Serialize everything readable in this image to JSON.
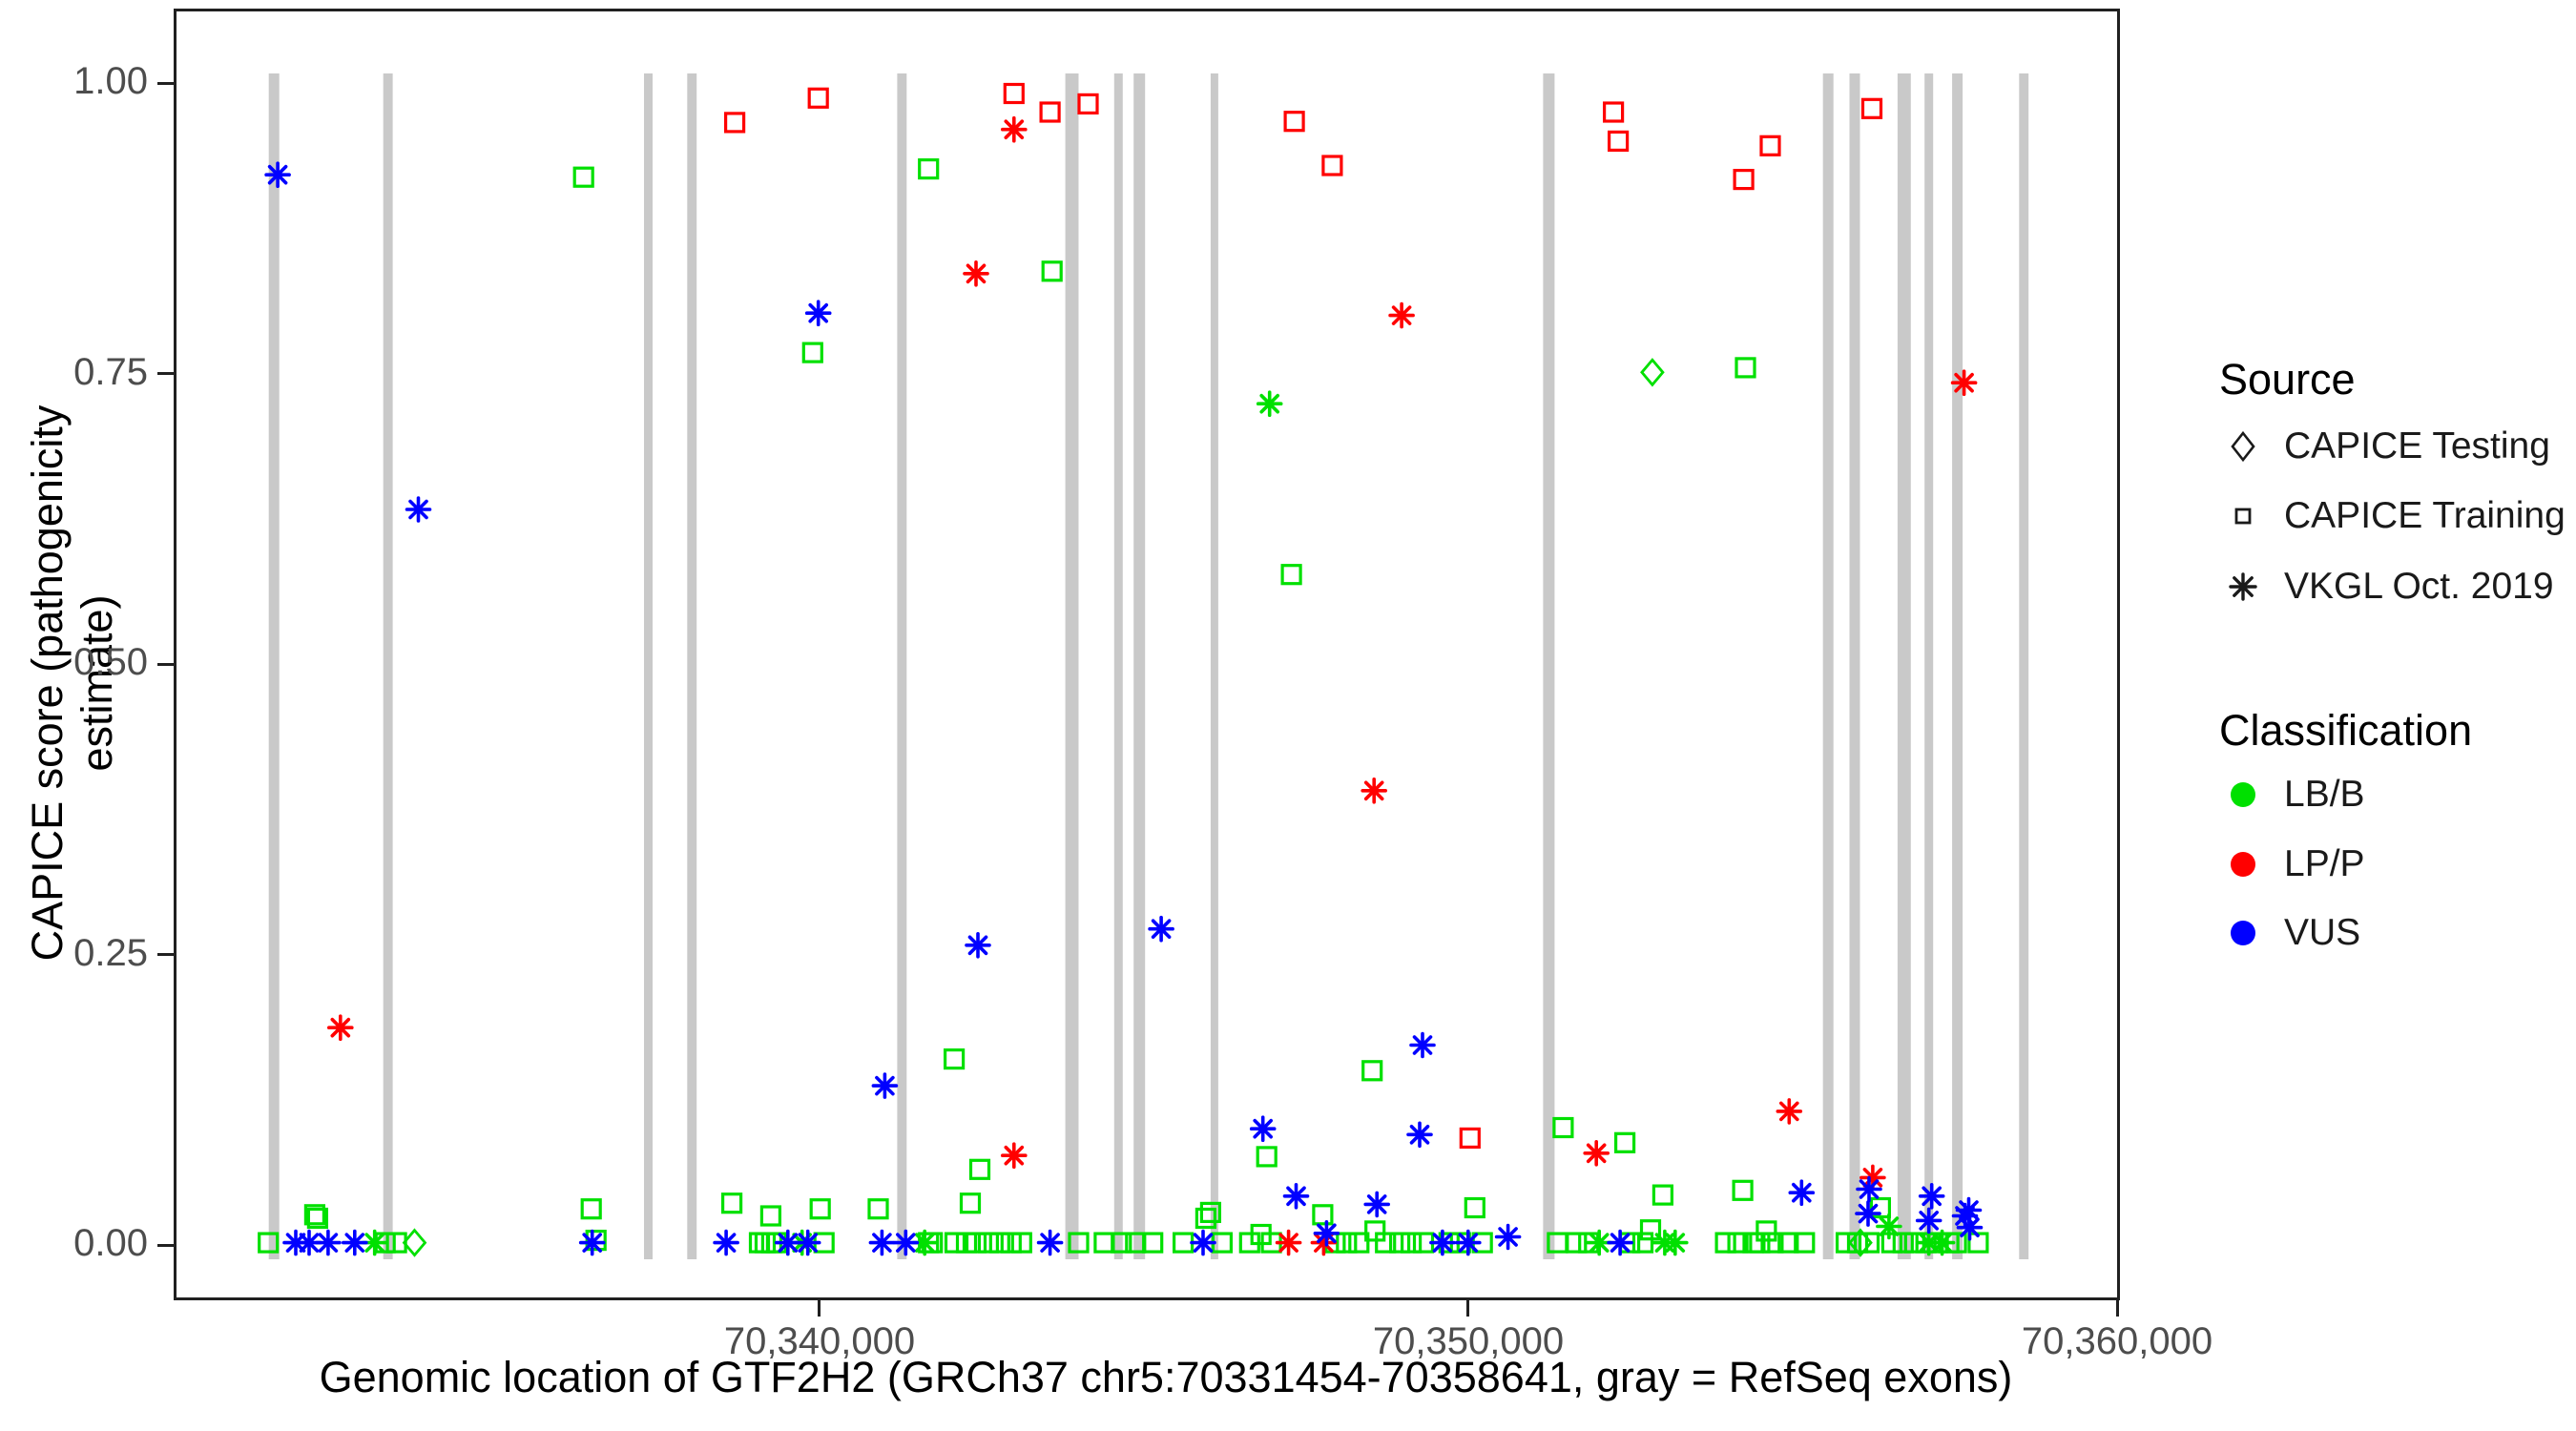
{
  "axis": {
    "x_title": "Genomic location of GTF2H2 (GRCh37 chr5:70331454-70358641, gray = RefSeq exons)",
    "y_title": "CAPICE score (pathogenicity estimate)"
  },
  "legend": {
    "source": {
      "title": "Source",
      "items": [
        {
          "label": "CAPICE Testing",
          "shape": "diamond"
        },
        {
          "label": "CAPICE Training",
          "shape": "square"
        },
        {
          "label": "VKGL Oct. 2019",
          "shape": "asterisk"
        }
      ]
    },
    "classification": {
      "title": "Classification",
      "items": [
        {
          "label": "LB/B",
          "color": "#00E000"
        },
        {
          "label": "LP/P",
          "color": "#FF0000"
        },
        {
          "label": "VUS",
          "color": "#0000FF"
        }
      ]
    }
  },
  "chart_data": {
    "type": "scatter",
    "title": "",
    "xlabel": "Genomic location of GTF2H2 (GRCh37 chr5:70331454-70358641, gray = RefSeq exons)",
    "ylabel": "CAPICE score (pathogenicity estimate)",
    "x_range": [
      70330095,
      70360000
    ],
    "y_range": [
      0,
      1
    ],
    "grid": false,
    "legend_position": "right",
    "x_ticks": [
      {
        "value": 70340000,
        "label": "70,340,000"
      },
      {
        "value": 70350000,
        "label": "70,350,000"
      },
      {
        "value": 70360000,
        "label": "70,360,000"
      }
    ],
    "y_ticks": [
      {
        "value": 0.0,
        "label": "0.00"
      },
      {
        "value": 0.25,
        "label": "0.25"
      },
      {
        "value": 0.5,
        "label": "0.50"
      },
      {
        "value": 0.75,
        "label": "0.75"
      },
      {
        "value": 1.0,
        "label": "1.00"
      }
    ],
    "exon_color": "#C9C9C9",
    "exons_center_width_bp": [
      [
        70331597,
        161
      ],
      [
        70333354,
        146
      ],
      [
        70337365,
        132
      ],
      [
        70338039,
        146
      ],
      [
        70341274,
        146
      ],
      [
        70343894,
        205
      ],
      [
        70344611,
        132
      ],
      [
        70344933,
        176
      ],
      [
        70346090,
        117
      ],
      [
        70351243,
        176
      ],
      [
        70355548,
        161
      ],
      [
        70355957,
        161
      ],
      [
        70356719,
        205
      ],
      [
        70357099,
        132
      ],
      [
        70357538,
        161
      ],
      [
        70358563,
        146
      ]
    ],
    "shape_codes": {
      "q": "CAPICE Training (square)",
      "a": "VKGL Oct. 2019 (asterisk)",
      "d": "CAPICE Testing (diamond)"
    },
    "class_codes": {
      "G": "LB/B",
      "R": "LP/P",
      "B": "VUS"
    },
    "class_colors": {
      "G": "#00E000",
      "R": "#FF0000",
      "B": "#0000FF"
    },
    "points": [
      [
        70331655,
        0.921,
        "a",
        "B"
      ],
      [
        70336369,
        0.919,
        "q",
        "G"
      ],
      [
        70338697,
        0.966,
        "q",
        "R"
      ],
      [
        70339985,
        0.987,
        "q",
        "R"
      ],
      [
        70341683,
        0.926,
        "q",
        "G"
      ],
      [
        70343001,
        0.991,
        "q",
        "R"
      ],
      [
        70343001,
        0.96,
        "a",
        "R"
      ],
      [
        70343557,
        0.975,
        "q",
        "R"
      ],
      [
        70344143,
        0.982,
        "q",
        "R"
      ],
      [
        70347320,
        0.967,
        "q",
        "R"
      ],
      [
        70347906,
        0.929,
        "q",
        "R"
      ],
      [
        70352239,
        0.975,
        "q",
        "R"
      ],
      [
        70352312,
        0.95,
        "q",
        "R"
      ],
      [
        70354245,
        0.917,
        "q",
        "R"
      ],
      [
        70354655,
        0.946,
        "q",
        "R"
      ],
      [
        70356221,
        0.978,
        "q",
        "R"
      ],
      [
        70342416,
        0.836,
        "a",
        "R"
      ],
      [
        70343587,
        0.838,
        "q",
        "G"
      ],
      [
        70339985,
        0.802,
        "a",
        "B"
      ],
      [
        70339898,
        0.768,
        "q",
        "G"
      ],
      [
        70348975,
        0.8,
        "a",
        "R"
      ],
      [
        70346940,
        0.724,
        "a",
        "G"
      ],
      [
        70352839,
        0.751,
        "d",
        "G"
      ],
      [
        70354274,
        0.755,
        "q",
        "G"
      ],
      [
        70357641,
        0.742,
        "a",
        "R"
      ],
      [
        70333822,
        0.633,
        "a",
        "B"
      ],
      [
        70347276,
        0.577,
        "q",
        "G"
      ],
      [
        70348550,
        0.391,
        "a",
        "R"
      ],
      [
        70345270,
        0.272,
        "a",
        "B"
      ],
      [
        70342445,
        0.258,
        "a",
        "B"
      ],
      [
        70332621,
        0.187,
        "a",
        "R"
      ],
      [
        70349297,
        0.172,
        "a",
        "B"
      ],
      [
        70342079,
        0.16,
        "q",
        "G"
      ],
      [
        70341010,
        0.137,
        "a",
        "B"
      ],
      [
        70348520,
        0.15,
        "q",
        "G"
      ],
      [
        70354947,
        0.115,
        "a",
        "R"
      ],
      [
        70346837,
        0.1,
        "a",
        "B"
      ],
      [
        70349253,
        0.095,
        "a",
        "B"
      ],
      [
        70350029,
        0.092,
        "q",
        "R"
      ],
      [
        70351463,
        0.101,
        "q",
        "G"
      ],
      [
        70352415,
        0.088,
        "q",
        "G"
      ],
      [
        70346896,
        0.076,
        "q",
        "G"
      ],
      [
        70351976,
        0.079,
        "a",
        "R"
      ],
      [
        70343001,
        0.077,
        "a",
        "R"
      ],
      [
        70342474,
        0.065,
        "q",
        "G"
      ],
      [
        70356235,
        0.058,
        "a",
        "R"
      ],
      [
        70356177,
        0.048,
        "a",
        "B"
      ],
      [
        70355138,
        0.045,
        "a",
        "B"
      ],
      [
        70357143,
        0.042,
        "a",
        "B"
      ],
      [
        70354230,
        0.047,
        "q",
        "G"
      ],
      [
        70353000,
        0.043,
        "q",
        "G"
      ],
      [
        70347349,
        0.042,
        "a",
        "B"
      ],
      [
        70348594,
        0.035,
        "a",
        "B"
      ],
      [
        70357714,
        0.03,
        "a",
        "B"
      ],
      [
        70332226,
        0.026,
        "q",
        "G"
      ],
      [
        70336486,
        0.031,
        "q",
        "G"
      ],
      [
        70338653,
        0.036,
        "q",
        "G"
      ],
      [
        70339253,
        0.025,
        "q",
        "G"
      ],
      [
        70340015,
        0.031,
        "q",
        "G"
      ],
      [
        70340908,
        0.031,
        "q",
        "G"
      ],
      [
        70342328,
        0.036,
        "q",
        "G"
      ],
      [
        70346031,
        0.028,
        "q",
        "G"
      ],
      [
        70347759,
        0.026,
        "q",
        "G"
      ],
      [
        70345958,
        0.023,
        "q",
        "G"
      ],
      [
        70346808,
        0.009,
        "q",
        "G"
      ],
      [
        70348564,
        0.012,
        "q",
        "G"
      ],
      [
        70350102,
        0.032,
        "q",
        "G"
      ],
      [
        70352810,
        0.013,
        "q",
        "G"
      ],
      [
        70354596,
        0.012,
        "q",
        "G"
      ],
      [
        70356353,
        0.032,
        "q",
        "G"
      ],
      [
        70332270,
        0.023,
        "q",
        "G"
      ],
      [
        70336560,
        0.004,
        "q",
        "G"
      ],
      [
        70331509,
        0.002,
        "q",
        "G"
      ],
      [
        70333310,
        0.002,
        "q",
        "G"
      ],
      [
        70333485,
        0.002,
        "q",
        "G"
      ],
      [
        70339078,
        0.002,
        "q",
        "G"
      ],
      [
        70339166,
        0.002,
        "q",
        "G"
      ],
      [
        70339268,
        0.002,
        "q",
        "G"
      ],
      [
        70339341,
        0.002,
        "q",
        "G"
      ],
      [
        70340073,
        0.002,
        "q",
        "G"
      ],
      [
        70341683,
        0.002,
        "q",
        "G"
      ],
      [
        70341742,
        0.002,
        "q",
        "G"
      ],
      [
        70342093,
        0.002,
        "q",
        "G"
      ],
      [
        70342269,
        0.002,
        "q",
        "G"
      ],
      [
        70342416,
        0.002,
        "q",
        "G"
      ],
      [
        70342606,
        0.002,
        "q",
        "G"
      ],
      [
        70342781,
        0.002,
        "q",
        "G"
      ],
      [
        70342957,
        0.002,
        "q",
        "G"
      ],
      [
        70343118,
        0.002,
        "q",
        "G"
      ],
      [
        70343997,
        0.002,
        "q",
        "G"
      ],
      [
        70344392,
        0.002,
        "q",
        "G"
      ],
      [
        70344655,
        0.002,
        "q",
        "G"
      ],
      [
        70344875,
        0.002,
        "q",
        "G"
      ],
      [
        70345139,
        0.002,
        "q",
        "G"
      ],
      [
        70345607,
        0.002,
        "q",
        "G"
      ],
      [
        70346207,
        0.002,
        "q",
        "G"
      ],
      [
        70346632,
        0.002,
        "q",
        "G"
      ],
      [
        70346968,
        0.002,
        "q",
        "G"
      ],
      [
        70347950,
        0.002,
        "q",
        "G"
      ],
      [
        70348125,
        0.002,
        "q",
        "G"
      ],
      [
        70348316,
        0.002,
        "q",
        "G"
      ],
      [
        70348726,
        0.002,
        "q",
        "G"
      ],
      [
        70348945,
        0.002,
        "q",
        "G"
      ],
      [
        70349121,
        0.002,
        "q",
        "G"
      ],
      [
        70349311,
        0.002,
        "q",
        "G"
      ],
      [
        70349706,
        0.002,
        "q",
        "G"
      ],
      [
        70349882,
        0.002,
        "q",
        "G"
      ],
      [
        70350219,
        0.002,
        "q",
        "G"
      ],
      [
        70351375,
        0.002,
        "q",
        "G"
      ],
      [
        70351668,
        0.002,
        "q",
        "G"
      ],
      [
        70351858,
        0.002,
        "q",
        "G"
      ],
      [
        70352488,
        0.002,
        "q",
        "G"
      ],
      [
        70352693,
        0.002,
        "q",
        "G"
      ],
      [
        70353966,
        0.002,
        "q",
        "G"
      ],
      [
        70354157,
        0.002,
        "q",
        "G"
      ],
      [
        70354391,
        0.002,
        "q",
        "G"
      ],
      [
        70354493,
        0.002,
        "q",
        "G"
      ],
      [
        70354698,
        0.002,
        "q",
        "G"
      ],
      [
        70354932,
        0.002,
        "q",
        "G"
      ],
      [
        70355182,
        0.002,
        "q",
        "G"
      ],
      [
        70355826,
        0.002,
        "q",
        "G"
      ],
      [
        70356001,
        0.002,
        "q",
        "G"
      ],
      [
        70356177,
        0.002,
        "q",
        "G"
      ],
      [
        70356528,
        0.002,
        "q",
        "G"
      ],
      [
        70356704,
        0.002,
        "q",
        "G"
      ],
      [
        70356880,
        0.002,
        "q",
        "G"
      ],
      [
        70357055,
        0.002,
        "q",
        "G"
      ],
      [
        70357231,
        0.002,
        "q",
        "G"
      ],
      [
        70357407,
        0.002,
        "q",
        "G"
      ],
      [
        70357524,
        0.002,
        "q",
        "G"
      ],
      [
        70357860,
        0.002,
        "q",
        "G"
      ],
      [
        70333149,
        0.002,
        "a",
        "G"
      ],
      [
        70339736,
        0.002,
        "a",
        "G"
      ],
      [
        70341625,
        0.002,
        "a",
        "G"
      ],
      [
        70352019,
        0.002,
        "a",
        "G"
      ],
      [
        70353029,
        0.002,
        "a",
        "G"
      ],
      [
        70353190,
        0.002,
        "a",
        "G"
      ],
      [
        70357099,
        0.002,
        "a",
        "G"
      ],
      [
        70357304,
        0.002,
        "a",
        "G"
      ],
      [
        70356484,
        0.016,
        "a",
        "G"
      ],
      [
        70333763,
        0.002,
        "d",
        "G"
      ],
      [
        70356045,
        0.002,
        "d",
        "G"
      ],
      [
        70347232,
        0.002,
        "a",
        "R"
      ],
      [
        70347774,
        0.002,
        "a",
        "R"
      ],
      [
        70331933,
        0.002,
        "a",
        "B"
      ],
      [
        70332138,
        0.002,
        "a",
        "B"
      ],
      [
        70332431,
        0.002,
        "a",
        "B"
      ],
      [
        70332841,
        0.002,
        "a",
        "B"
      ],
      [
        70336501,
        0.002,
        "a",
        "B"
      ],
      [
        70338565,
        0.002,
        "a",
        "B"
      ],
      [
        70339517,
        0.002,
        "a",
        "B"
      ],
      [
        70339824,
        0.002,
        "a",
        "B"
      ],
      [
        70340966,
        0.002,
        "a",
        "B"
      ],
      [
        70341332,
        0.002,
        "a",
        "B"
      ],
      [
        70343557,
        0.002,
        "a",
        "B"
      ],
      [
        70345915,
        0.002,
        "a",
        "B"
      ],
      [
        70349604,
        0.002,
        "a",
        "B"
      ],
      [
        70349999,
        0.002,
        "a",
        "B"
      ],
      [
        70352341,
        0.002,
        "a",
        "B"
      ],
      [
        70347818,
        0.01,
        "a",
        "B"
      ],
      [
        70350614,
        0.007,
        "a",
        "B"
      ],
      [
        70356162,
        0.027,
        "a",
        "B"
      ],
      [
        70357099,
        0.021,
        "a",
        "B"
      ],
      [
        70357655,
        0.025,
        "a",
        "B"
      ],
      [
        70357729,
        0.015,
        "a",
        "B"
      ]
    ]
  }
}
